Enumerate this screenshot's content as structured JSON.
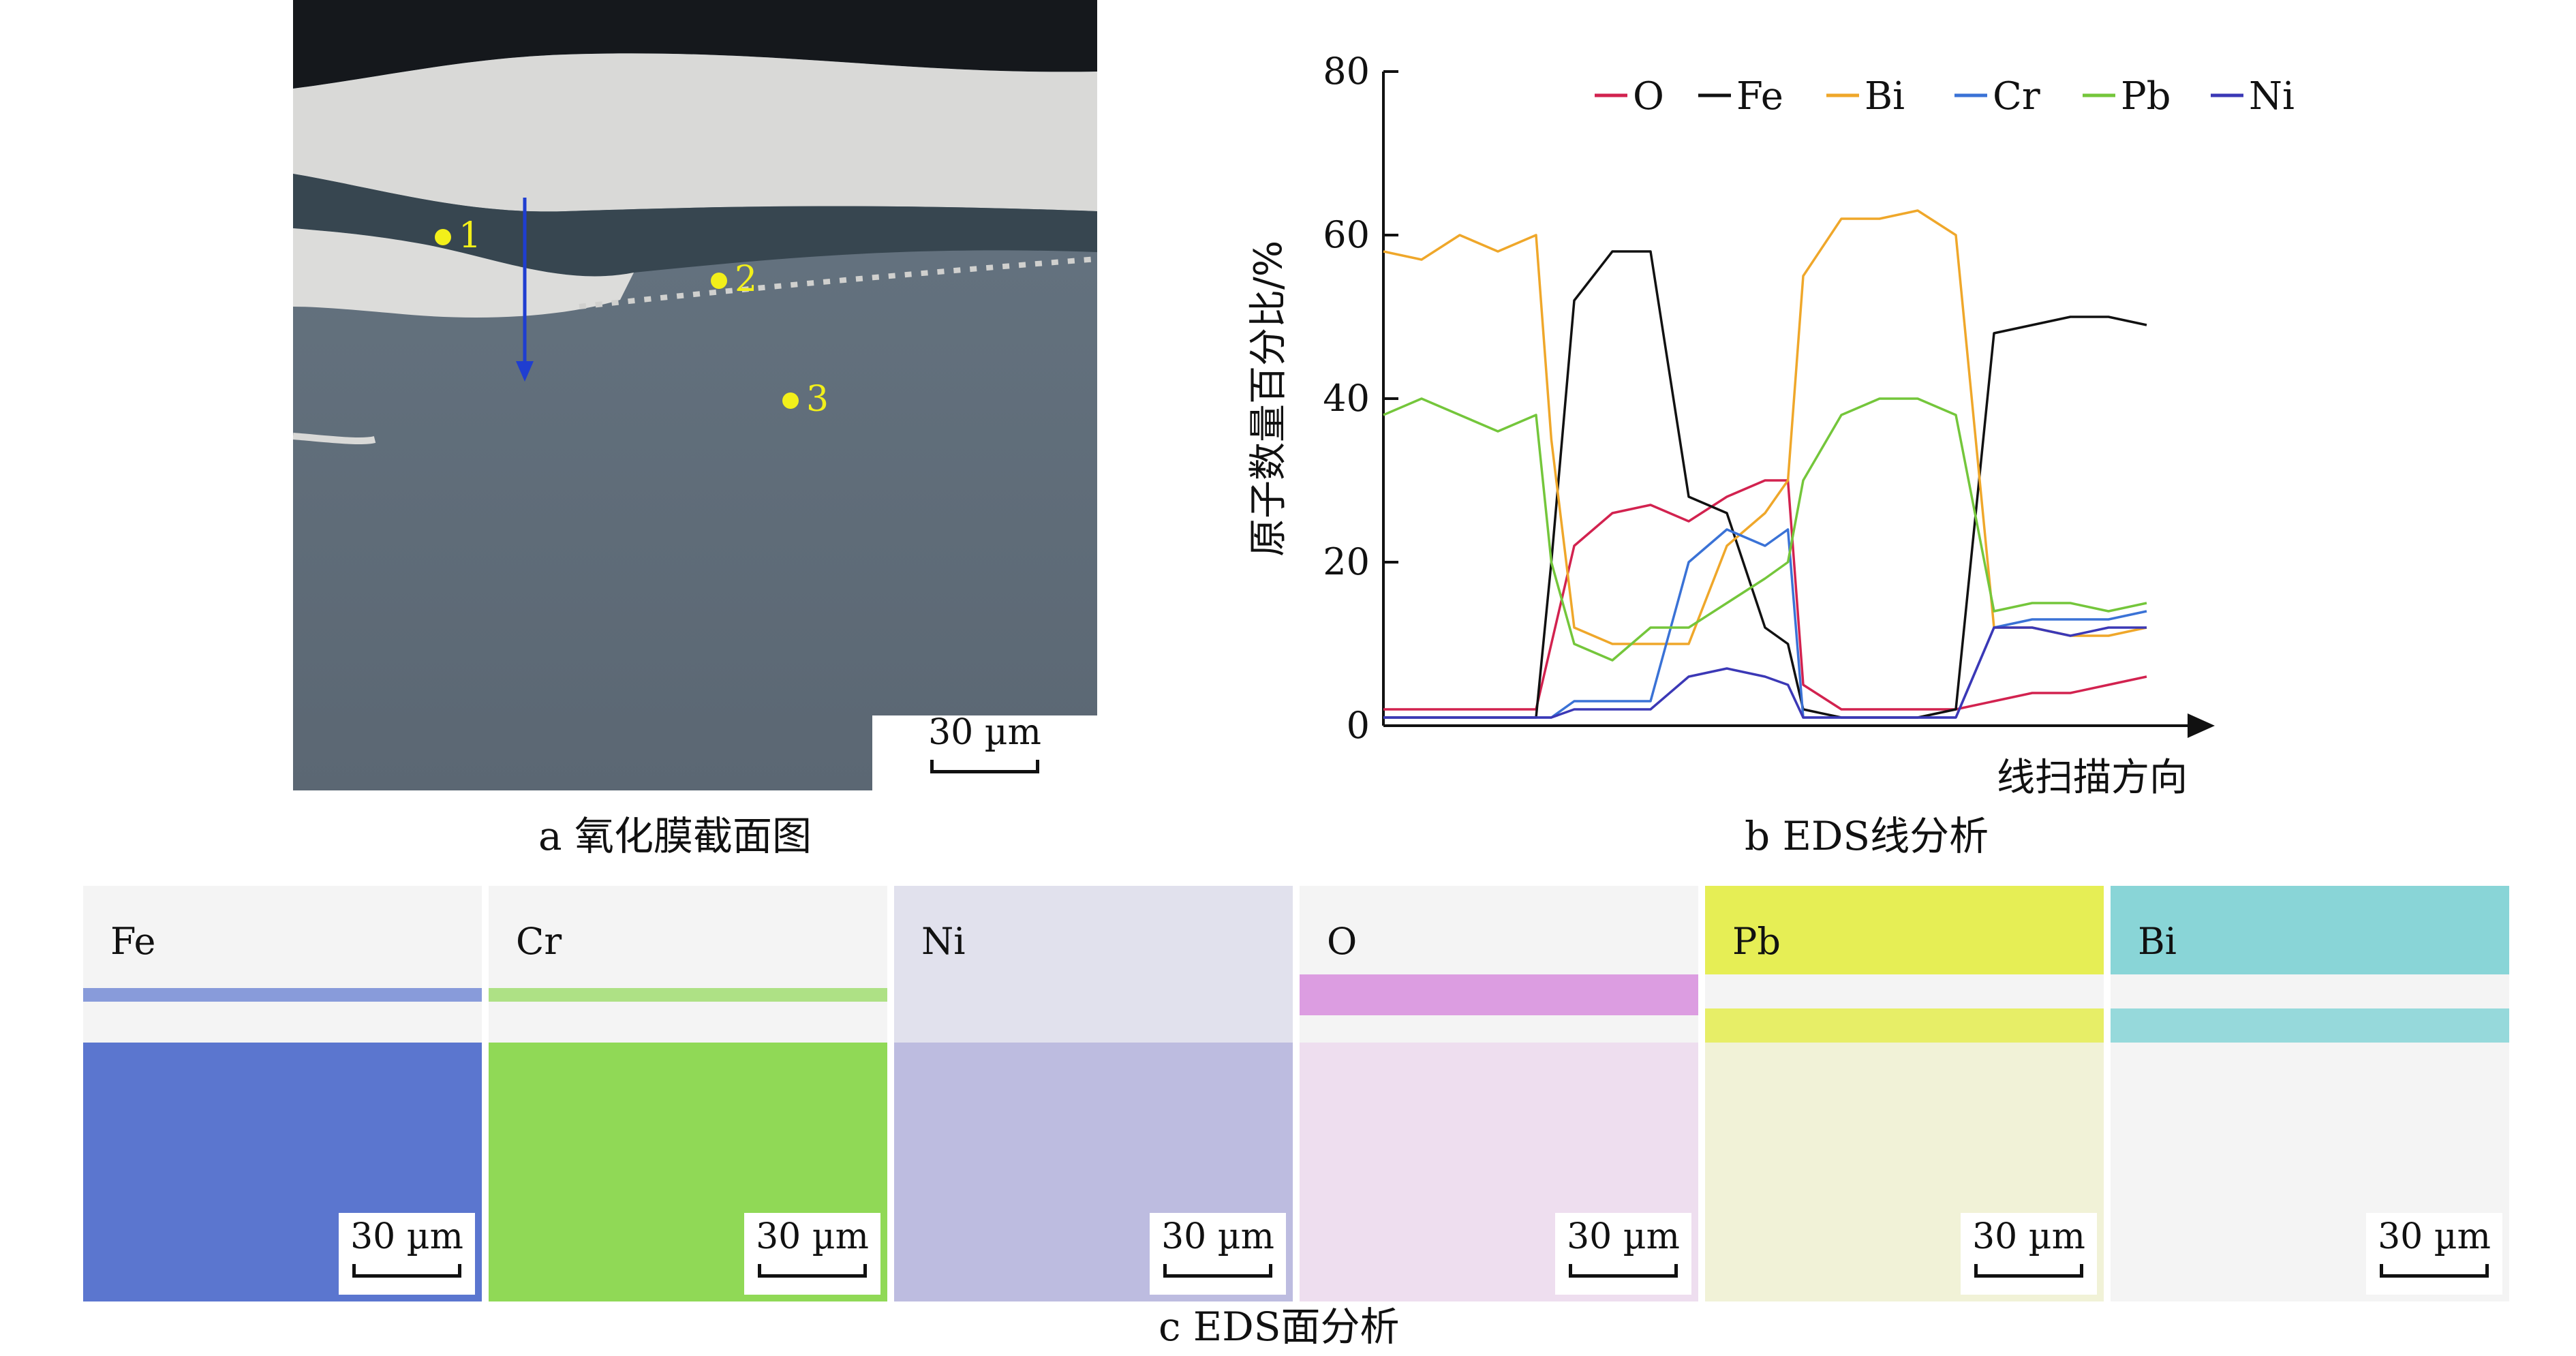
{
  "panel_a": {
    "caption": "a  氧化膜截面图",
    "scalebar": "30 µm",
    "points": [
      "1",
      "2",
      "3"
    ]
  },
  "panel_b": {
    "caption": "b  EDS线分析"
  },
  "panel_c": {
    "caption": "c  EDS面分析",
    "maps": [
      {
        "element": "Fe",
        "scalebar": "30 µm",
        "color": "#3f5fc8"
      },
      {
        "element": "Cr",
        "scalebar": "30 µm",
        "color": "#7ed43a"
      },
      {
        "element": "Ni",
        "scalebar": "30 µm",
        "color": "#7a78c8"
      },
      {
        "element": "O",
        "scalebar": "30 µm",
        "color": "#d178d8"
      },
      {
        "element": "Pb",
        "scalebar": "30 µm",
        "color": "#e3ec38"
      },
      {
        "element": "Bi",
        "scalebar": "30 µm",
        "color": "#6ecdd0"
      }
    ]
  },
  "chart_data": {
    "type": "line",
    "xlabel": "线扫描方向",
    "ylabel": "原子数量百分比/%",
    "ylim": [
      0,
      80
    ],
    "yticks": [
      0,
      20,
      40,
      60,
      80
    ],
    "x_positions": [
      0.0,
      0.05,
      0.1,
      0.15,
      0.2,
      0.22,
      0.25,
      0.3,
      0.35,
      0.4,
      0.45,
      0.5,
      0.53,
      0.55,
      0.6,
      0.65,
      0.7,
      0.75,
      0.8,
      0.85,
      0.9,
      0.95,
      1.0
    ],
    "legend": [
      "O",
      "Fe",
      "Bi",
      "Cr",
      "Pb",
      "Ni"
    ],
    "series": [
      {
        "name": "O",
        "color": "#d2224f",
        "values": [
          2,
          2,
          2,
          2,
          2,
          10,
          22,
          26,
          27,
          25,
          28,
          30,
          30,
          5,
          2,
          2,
          2,
          2,
          3,
          4,
          4,
          5,
          6
        ]
      },
      {
        "name": "Fe",
        "color": "#111111",
        "values": [
          1,
          1,
          1,
          1,
          1,
          20,
          52,
          58,
          58,
          28,
          26,
          12,
          10,
          2,
          1,
          1,
          1,
          2,
          48,
          49,
          50,
          50,
          49
        ]
      },
      {
        "name": "Bi",
        "color": "#efa72a",
        "values": [
          58,
          57,
          60,
          58,
          60,
          35,
          12,
          10,
          10,
          10,
          22,
          26,
          30,
          55,
          62,
          62,
          63,
          60,
          12,
          12,
          11,
          11,
          12
        ]
      },
      {
        "name": "Cr",
        "color": "#3a72d6",
        "values": [
          1,
          1,
          1,
          1,
          1,
          1,
          3,
          3,
          3,
          20,
          24,
          22,
          24,
          1,
          1,
          1,
          1,
          1,
          12,
          13,
          13,
          13,
          14
        ]
      },
      {
        "name": "Pb",
        "color": "#74c63b",
        "values": [
          38,
          40,
          38,
          36,
          38,
          20,
          10,
          8,
          12,
          12,
          15,
          18,
          20,
          30,
          38,
          40,
          40,
          38,
          14,
          15,
          15,
          14,
          15
        ]
      },
      {
        "name": "Ni",
        "color": "#3b38b6",
        "values": [
          1,
          1,
          1,
          1,
          1,
          1,
          2,
          2,
          2,
          6,
          7,
          6,
          5,
          1,
          1,
          1,
          1,
          1,
          12,
          12,
          11,
          12,
          12
        ]
      }
    ]
  }
}
